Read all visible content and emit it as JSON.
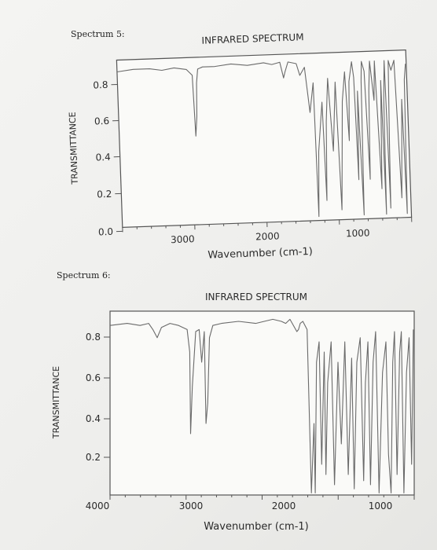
{
  "chart_data": [
    {
      "type": "line",
      "label": "Spectrum 5:",
      "title": "INFRARED SPECTRUM",
      "xlabel": "Wavenumber (cm-1)",
      "ylabel": "TRANSMITTANCE",
      "x_tick_labels": [
        "3000",
        "2000",
        "1000"
      ],
      "y_tick_labels": [
        "0.8",
        "0.6",
        "0.4",
        "0.2",
        "0.0"
      ],
      "xlim": [
        4000,
        450
      ],
      "ylim": [
        0.0,
        0.85
      ],
      "grid": false,
      "series": [
        {
          "x": [
            4000,
            3800,
            3600,
            3450,
            3300,
            3150,
            3080,
            3060,
            3040,
            3030,
            3010,
            2950,
            2800,
            2600,
            2400,
            2200,
            2100,
            2000,
            1960,
            1940,
            1900,
            1800,
            1760,
            1700,
            1650,
            1600,
            1585,
            1560,
            1500,
            1480,
            1455,
            1420,
            1380,
            1330,
            1300,
            1250,
            1210,
            1180,
            1160,
            1120,
            1100,
            1080,
            1060,
            1030,
            1010,
            1000,
            970,
            940,
            920,
            900,
            860,
            840,
            800,
            770,
            755,
            740,
            720,
            700,
            690,
            670,
            640,
            600,
            560,
            520,
            500,
            480,
            460
          ],
          "y": [
            0.79,
            0.8,
            0.8,
            0.79,
            0.8,
            0.79,
            0.76,
            0.45,
            0.55,
            0.72,
            0.79,
            0.8,
            0.8,
            0.81,
            0.8,
            0.81,
            0.8,
            0.81,
            0.73,
            0.76,
            0.81,
            0.8,
            0.74,
            0.78,
            0.55,
            0.7,
            0.02,
            0.35,
            0.6,
            0.1,
            0.5,
            0.72,
            0.35,
            0.7,
            0.05,
            0.6,
            0.75,
            0.4,
            0.7,
            0.8,
            0.72,
            0.2,
            0.65,
            0.02,
            0.7,
            0.8,
            0.75,
            0.2,
            0.65,
            0.8,
            0.6,
            0.8,
            0.15,
            0.7,
            0.02,
            0.6,
            0.8,
            0.05,
            0.35,
            0.8,
            0.75,
            0.8,
            0.1,
            0.6,
            0.02,
            0.7,
            0.78
          ]
        }
      ]
    },
    {
      "type": "line",
      "label": "Spectrum 6:",
      "title": "INFRARED SPECTRUM",
      "xlabel": "Wavenumber (cm-1)",
      "ylabel": "TRANSMITTANCE",
      "x_tick_labels": [
        "4000",
        "3000",
        "2000",
        "1000"
      ],
      "y_tick_labels": [
        "0.8",
        "0.6",
        "0.4",
        "0.2"
      ],
      "xlim": [
        4000,
        450
      ],
      "ylim": [
        0.05,
        0.95
      ],
      "grid": false,
      "series": [
        {
          "x": [
            4000,
            3800,
            3650,
            3550,
            3500,
            3450,
            3400,
            3300,
            3200,
            3100,
            3070,
            3060,
            3040,
            3000,
            2960,
            2930,
            2900,
            2880,
            2860,
            2840,
            2800,
            2700,
            2500,
            2300,
            2100,
            2000,
            1950,
            1900,
            1820,
            1800,
            1780,
            1750,
            1700,
            1650,
            1620,
            1605,
            1590,
            1560,
            1530,
            1500,
            1480,
            1460,
            1420,
            1380,
            1340,
            1300,
            1260,
            1220,
            1180,
            1150,
            1120,
            1080,
            1040,
            1020,
            990,
            960,
            930,
            900,
            860,
            820,
            780,
            750,
            720,
            700,
            680,
            650,
            620,
            600,
            570,
            540,
            510,
            480,
            460
          ],
          "y": [
            0.88,
            0.89,
            0.88,
            0.89,
            0.86,
            0.82,
            0.87,
            0.89,
            0.88,
            0.86,
            0.75,
            0.35,
            0.58,
            0.85,
            0.86,
            0.7,
            0.85,
            0.4,
            0.5,
            0.82,
            0.88,
            0.89,
            0.9,
            0.89,
            0.91,
            0.9,
            0.89,
            0.91,
            0.85,
            0.86,
            0.89,
            0.9,
            0.86,
            0.06,
            0.4,
            0.06,
            0.7,
            0.8,
            0.2,
            0.75,
            0.15,
            0.6,
            0.8,
            0.1,
            0.7,
            0.3,
            0.8,
            0.15,
            0.72,
            0.08,
            0.7,
            0.82,
            0.12,
            0.6,
            0.8,
            0.1,
            0.7,
            0.85,
            0.06,
            0.65,
            0.8,
            0.25,
            0.06,
            0.7,
            0.85,
            0.15,
            0.75,
            0.85,
            0.06,
            0.65,
            0.82,
            0.2,
            0.86
          ]
        }
      ]
    }
  ]
}
